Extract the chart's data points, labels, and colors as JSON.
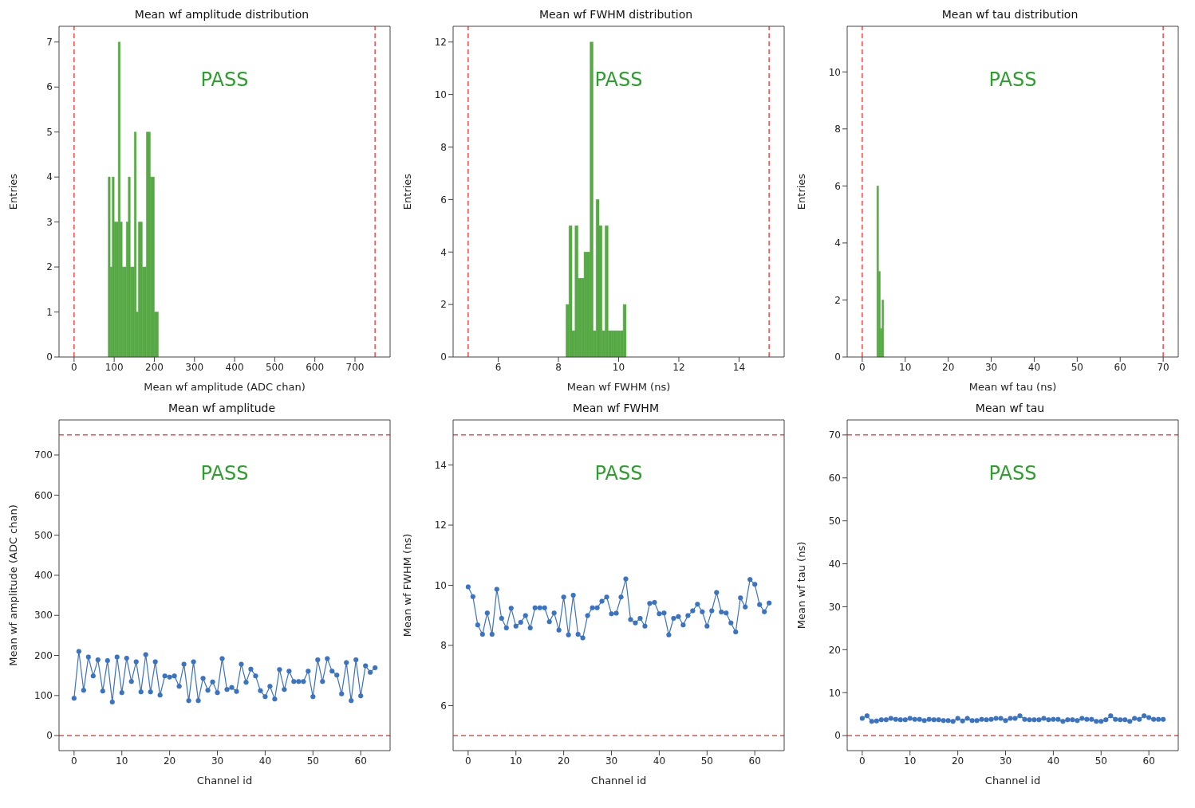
{
  "chart_data": [
    {
      "type": "histogram",
      "title": "Mean wf amplitude distribution",
      "xlabel": "Mean wf amplitude (ADC chan)",
      "ylabel": "Entries",
      "annotations": [
        "PASS"
      ],
      "color": "#56a944",
      "bins": [
        85,
        90,
        95,
        100,
        105,
        110,
        115,
        120,
        125,
        130,
        135,
        140,
        145,
        150,
        155,
        160,
        165,
        170,
        175,
        180,
        185,
        190,
        195,
        200,
        205,
        210
      ],
      "values": [
        4,
        2,
        4,
        3,
        3,
        7,
        3,
        2,
        2,
        3,
        4,
        2,
        2,
        5,
        1,
        3,
        3,
        2,
        2,
        5,
        5,
        4,
        4,
        1,
        1
      ],
      "xlim": [
        -37.5,
        787.5
      ],
      "xticks": [
        0,
        100,
        200,
        300,
        400,
        500,
        600,
        700
      ],
      "ylim": [
        0,
        7.35
      ],
      "yticks": [
        0,
        1,
        2,
        3,
        4,
        5,
        6,
        7
      ],
      "ref_lines": [
        {
          "axis": "x",
          "value": 0,
          "color": "#ff4444",
          "line_style": "dashed"
        },
        {
          "axis": "x",
          "value": 750,
          "color": "#ff4444",
          "line_style": "dashed"
        }
      ]
    },
    {
      "type": "histogram",
      "title": "Mean wf FWHM distribution",
      "xlabel": "Mean wf FWHM (ns)",
      "ylabel": "Entries",
      "annotations": [
        "PASS"
      ],
      "color": "#56a944",
      "bins": [
        8.25,
        8.35,
        8.45,
        8.55,
        8.65,
        8.75,
        8.85,
        8.95,
        9.05,
        9.15,
        9.25,
        9.35,
        9.45,
        9.55,
        9.65,
        9.75,
        9.85,
        9.95,
        10.05,
        10.15,
        10.25
      ],
      "values": [
        2,
        5,
        1,
        5,
        3,
        3,
        4,
        4,
        12,
        1,
        6,
        5,
        1,
        5,
        1,
        1,
        1,
        1,
        1,
        2
      ],
      "xlim": [
        4.5,
        15.5
      ],
      "xticks": [
        6,
        8,
        10,
        12,
        14
      ],
      "ylim": [
        0,
        12.6
      ],
      "yticks": [
        0,
        2,
        4,
        6,
        8,
        10,
        12
      ],
      "ref_lines": [
        {
          "axis": "x",
          "value": 5,
          "color": "#ff4444",
          "line_style": "dashed"
        },
        {
          "axis": "x",
          "value": 15,
          "color": "#ff4444",
          "line_style": "dashed"
        }
      ]
    },
    {
      "type": "histogram",
      "title": "Mean wf tau distribution",
      "xlabel": "Mean wf tau (ns)",
      "ylabel": "Entries",
      "annotations": [
        "PASS"
      ],
      "color": "#56a944",
      "bins": [
        3.4,
        3.8,
        4.2,
        4.6,
        5.0
      ],
      "values": [
        6,
        3,
        1,
        2
      ],
      "xlim": [
        -3.5,
        73.5
      ],
      "xticks": [
        0,
        10,
        20,
        30,
        40,
        50,
        60,
        70
      ],
      "ylim": [
        0,
        11.6
      ],
      "yticks": [
        0,
        2,
        4,
        6,
        8,
        10
      ],
      "ref_lines": [
        {
          "axis": "x",
          "value": 0,
          "color": "#ff4444",
          "line_style": "dashed"
        },
        {
          "axis": "x",
          "value": 70,
          "color": "#ff4444",
          "line_style": "dashed"
        }
      ]
    },
    {
      "type": "line",
      "title": "Mean wf amplitude",
      "xlabel": "Channel id",
      "ylabel": "Mean wf amplitude (ADC chan)",
      "annotations": [
        "PASS"
      ],
      "marker": "circle",
      "line_style": "solid",
      "x": [
        0,
        1,
        2,
        3,
        4,
        5,
        6,
        7,
        8,
        9,
        10,
        11,
        12,
        13,
        14,
        15,
        16,
        17,
        18,
        19,
        20,
        21,
        22,
        23,
        24,
        25,
        26,
        27,
        28,
        29,
        30,
        31,
        32,
        33,
        34,
        35,
        36,
        37,
        38,
        39,
        40,
        41,
        42,
        43,
        44,
        45,
        46,
        47,
        48,
        49,
        50,
        51,
        52,
        53,
        54,
        55,
        56,
        57,
        58,
        59,
        60,
        61,
        62,
        63
      ],
      "series": [
        {
          "color": "#3b73c0",
          "values": [
            93,
            210,
            113,
            196,
            149,
            189,
            111,
            187,
            84,
            196,
            107,
            193,
            135,
            184,
            109,
            202,
            109,
            184,
            101,
            149,
            146,
            149,
            123,
            178,
            87,
            184,
            87,
            143,
            113,
            134,
            107,
            192,
            115,
            120,
            110,
            178,
            133,
            166,
            149,
            112,
            97,
            123,
            91,
            165,
            115,
            161,
            135,
            135,
            135,
            161,
            97,
            189,
            135,
            192,
            161,
            151,
            104,
            182,
            87,
            189,
            99,
            174,
            158,
            169
          ]
        }
      ],
      "xlim": [
        -3.15,
        66.15
      ],
      "xticks": [
        0,
        10,
        20,
        30,
        40,
        50,
        60
      ],
      "ylim": [
        -37.5,
        787.5
      ],
      "yticks": [
        0,
        100,
        200,
        300,
        400,
        500,
        600,
        700
      ],
      "ref_lines": [
        {
          "axis": "y",
          "value": 0,
          "color": "#ff4444",
          "line_style": "dashed"
        },
        {
          "axis": "y",
          "value": 750,
          "color": "#ff4444",
          "line_style": "dashed"
        }
      ]
    },
    {
      "type": "line",
      "title": "Mean wf FWHM",
      "xlabel": "Channel id",
      "ylabel": "Mean wf FWHM (ns)",
      "annotations": [
        "PASS"
      ],
      "marker": "circle",
      "line_style": "solid",
      "x": [
        0,
        1,
        2,
        3,
        4,
        5,
        6,
        7,
        8,
        9,
        10,
        11,
        12,
        13,
        14,
        15,
        16,
        17,
        18,
        19,
        20,
        21,
        22,
        23,
        24,
        25,
        26,
        27,
        28,
        29,
        30,
        31,
        32,
        33,
        34,
        35,
        36,
        37,
        38,
        39,
        40,
        41,
        42,
        43,
        44,
        45,
        46,
        47,
        48,
        49,
        50,
        51,
        52,
        53,
        54,
        55,
        56,
        57,
        58,
        59,
        60,
        61,
        62,
        63
      ],
      "series": [
        {
          "color": "#3b73c0",
          "values": [
            9.95,
            9.62,
            8.68,
            8.37,
            9.08,
            8.37,
            9.87,
            8.9,
            8.58,
            9.24,
            8.64,
            8.77,
            8.99,
            8.58,
            9.25,
            9.25,
            9.25,
            8.79,
            9.08,
            8.51,
            9.61,
            8.35,
            9.67,
            8.37,
            8.25,
            8.99,
            9.25,
            9.25,
            9.47,
            9.61,
            9.05,
            9.07,
            9.61,
            10.21,
            8.86,
            8.75,
            8.9,
            8.64,
            9.4,
            9.43,
            9.05,
            9.08,
            8.35,
            8.9,
            8.96,
            8.68,
            8.99,
            9.15,
            9.37,
            9.12,
            8.64,
            9.15,
            9.76,
            9.11,
            9.08,
            8.75,
            8.45,
            9.58,
            9.28,
            10.19,
            10.03,
            9.36,
            9.12,
            9.41
          ]
        }
      ],
      "xlim": [
        -3.15,
        66.15
      ],
      "xticks": [
        0,
        10,
        20,
        30,
        40,
        50,
        60
      ],
      "ylim": [
        4.5,
        15.5
      ],
      "yticks": [
        6,
        8,
        10,
        12,
        14
      ],
      "ref_lines": [
        {
          "axis": "y",
          "value": 5,
          "color": "#ff4444",
          "line_style": "dashed"
        },
        {
          "axis": "y",
          "value": 15,
          "color": "#ff4444",
          "line_style": "dashed"
        }
      ]
    },
    {
      "type": "line",
      "title": "Mean wf tau",
      "xlabel": "Channel id",
      "ylabel": "Mean wf tau (ns)",
      "annotations": [
        "PASS"
      ],
      "marker": "circle",
      "line_style": "solid",
      "x": [
        0,
        1,
        2,
        3,
        4,
        5,
        6,
        7,
        8,
        9,
        10,
        11,
        12,
        13,
        14,
        15,
        16,
        17,
        18,
        19,
        20,
        21,
        22,
        23,
        24,
        25,
        26,
        27,
        28,
        29,
        30,
        31,
        32,
        33,
        34,
        35,
        36,
        37,
        38,
        39,
        40,
        41,
        42,
        43,
        44,
        45,
        46,
        47,
        48,
        49,
        50,
        51,
        52,
        53,
        54,
        55,
        56,
        57,
        58,
        59,
        60,
        61,
        62,
        63
      ],
      "series": [
        {
          "color": "#3b73c0",
          "values": [
            4.0,
            4.6,
            3.3,
            3.4,
            3.7,
            3.7,
            4.0,
            3.8,
            3.7,
            3.7,
            4.0,
            3.8,
            3.8,
            3.5,
            3.8,
            3.7,
            3.7,
            3.5,
            3.5,
            3.3,
            4.0,
            3.4,
            4.0,
            3.5,
            3.5,
            3.8,
            3.7,
            3.8,
            4.0,
            4.0,
            3.5,
            4.0,
            4.0,
            4.6,
            3.8,
            3.7,
            3.7,
            3.7,
            4.0,
            3.7,
            3.8,
            3.8,
            3.3,
            3.7,
            3.7,
            3.5,
            4.0,
            3.8,
            3.8,
            3.3,
            3.3,
            3.7,
            4.6,
            3.8,
            3.7,
            3.7,
            3.3,
            4.0,
            3.8,
            4.6,
            4.2,
            3.8,
            3.8,
            3.8
          ]
        }
      ],
      "xlim": [
        -3.15,
        66.15
      ],
      "xticks": [
        0,
        10,
        20,
        30,
        40,
        50,
        60
      ],
      "ylim": [
        -3.5,
        73.5
      ],
      "yticks": [
        0,
        10,
        20,
        30,
        40,
        50,
        60,
        70
      ],
      "ref_lines": [
        {
          "axis": "y",
          "value": 0,
          "color": "#ff4444",
          "line_style": "dashed"
        },
        {
          "axis": "y",
          "value": 70,
          "color": "#ff4444",
          "line_style": "dashed"
        }
      ]
    }
  ]
}
